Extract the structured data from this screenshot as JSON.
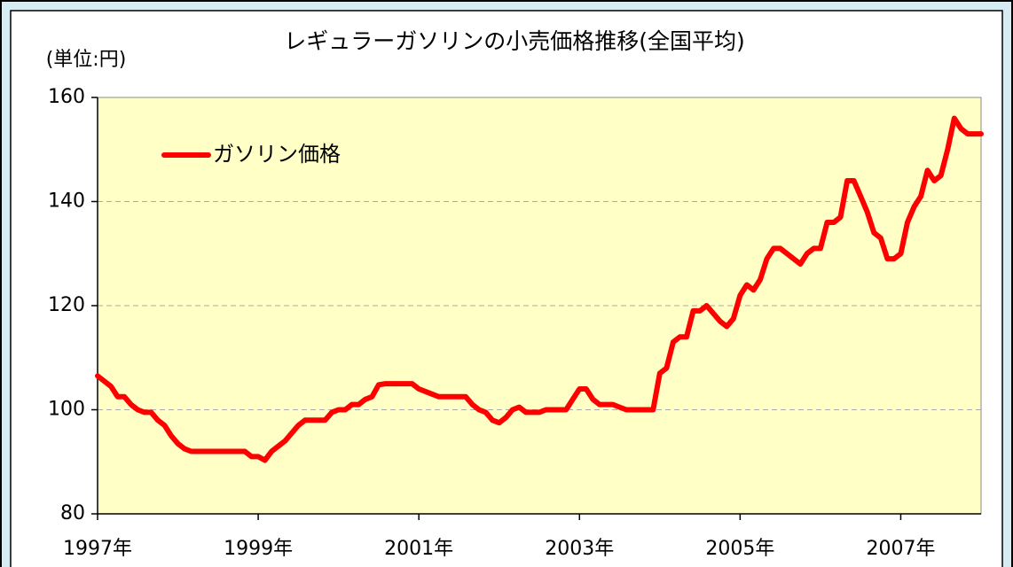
{
  "chart_data": {
    "type": "line",
    "title": "レギュラーガソリンの小売価格推移(全国平均)",
    "y_label": "(単位:円)",
    "categories": [
      "1997年",
      null,
      null,
      null,
      null,
      null,
      null,
      null,
      null,
      null,
      null,
      null,
      null,
      null,
      null,
      null,
      null,
      null,
      null,
      null,
      null,
      null,
      null,
      null,
      "1999年",
      null,
      null,
      null,
      null,
      null,
      null,
      null,
      null,
      null,
      null,
      null,
      null,
      null,
      null,
      null,
      null,
      null,
      null,
      null,
      null,
      null,
      null,
      null,
      "2001年",
      null,
      null,
      null,
      null,
      null,
      null,
      null,
      null,
      null,
      null,
      null,
      null,
      null,
      null,
      null,
      null,
      null,
      null,
      null,
      null,
      null,
      null,
      null,
      "2003年",
      null,
      null,
      null,
      null,
      null,
      null,
      null,
      null,
      null,
      null,
      null,
      null,
      null,
      null,
      null,
      null,
      null,
      null,
      null,
      null,
      null,
      null,
      null,
      "2005年",
      null,
      null,
      null,
      null,
      null,
      null,
      null,
      null,
      null,
      null,
      null,
      null,
      null,
      null,
      null,
      null,
      null,
      null,
      null,
      null,
      null,
      null,
      null,
      "2007年",
      null,
      null,
      null,
      null,
      null,
      null,
      null,
      null,
      null,
      null,
      null,
      null
    ],
    "series": [
      {
        "name": "ガソリン価格",
        "color": "#ff0000",
        "values": [
          106.5,
          105.5,
          104.5,
          102.5,
          102.5,
          101,
          100,
          99.5,
          99.5,
          98,
          97,
          95,
          93.5,
          92.5,
          92,
          92,
          92,
          92,
          92,
          92,
          92,
          92,
          92,
          91,
          91,
          90.3,
          92,
          93,
          94,
          95.5,
          97,
          98,
          98,
          98,
          98,
          99.5,
          100,
          100,
          101,
          101,
          102,
          102.5,
          104.8,
          105,
          105,
          105,
          105,
          105,
          104,
          103.5,
          103,
          102.5,
          102.5,
          102.5,
          102.5,
          102.5,
          101,
          100,
          99.5,
          98,
          97.5,
          98.5,
          100,
          100.5,
          99.5,
          99.5,
          99.5,
          100,
          100,
          100,
          100,
          102,
          104,
          104,
          102,
          101,
          101,
          101,
          100.5,
          100,
          100,
          100,
          100,
          100,
          107,
          108,
          113,
          114,
          114,
          119,
          119,
          120,
          118.5,
          117,
          116,
          117.5,
          122,
          124,
          123,
          125,
          129,
          131,
          131,
          130,
          129,
          128,
          130,
          131,
          131,
          136,
          136,
          137,
          144,
          144,
          141,
          138,
          134,
          133,
          129,
          129,
          130,
          136,
          139,
          141,
          146,
          144,
          145,
          150,
          156,
          154,
          153,
          153,
          153
        ]
      }
    ],
    "ylim": [
      80,
      160
    ],
    "yticks": [
      80,
      100,
      120,
      140,
      160
    ],
    "grid": true,
    "legend": "upper left"
  }
}
